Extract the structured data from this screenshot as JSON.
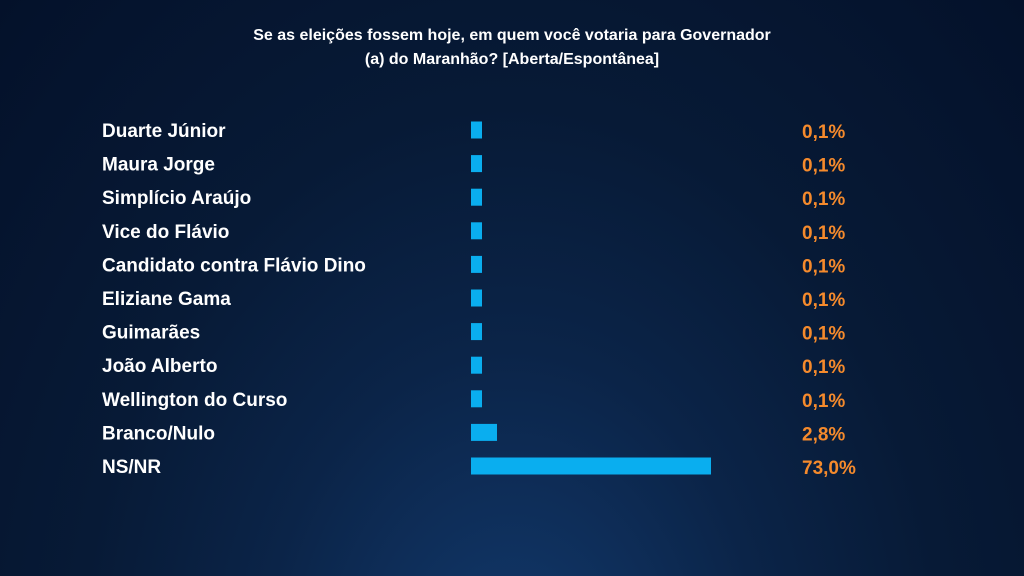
{
  "chart_data": {
    "type": "bar",
    "orientation": "horizontal",
    "title_line1": "Se as eleições fossem hoje, em quem você votaria para Governador",
    "title_line2": "(a) do Maranhão? [Aberta/Espontânea]",
    "categories": [
      "Duarte Júnior",
      "Maura Jorge",
      "Simplício Araújo",
      "Vice do Flávio",
      "Candidato contra Flávio Dino",
      "Eliziane Gama",
      "Guimarães",
      "João Alberto",
      "Wellington do Curso",
      "Branco/Nulo",
      "NS/NR"
    ],
    "values": [
      0.1,
      0.1,
      0.1,
      0.1,
      0.1,
      0.1,
      0.1,
      0.1,
      0.1,
      2.8,
      73.0
    ],
    "value_labels": [
      "0,1%",
      "0,1%",
      "0,1%",
      "0,1%",
      "0,1%",
      "0,1%",
      "0,1%",
      "0,1%",
      "0,1%",
      "2,8%",
      "73,0%"
    ],
    "unit": "%",
    "xlim": [
      0,
      73.0
    ],
    "grid": false,
    "legend": "none",
    "colors": {
      "bar": "#0aaeef",
      "value_text": "#f58a2c",
      "label_text": "#ffffff",
      "background": "#071a36"
    }
  }
}
